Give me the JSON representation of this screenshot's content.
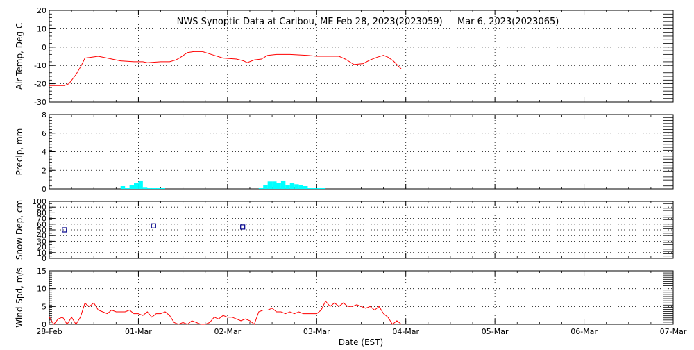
{
  "title": "NWS Synoptic Data at Caribou, ME   Feb 28, 2023(2023059) — Mar  6, 2023(2023065)",
  "x_axis": {
    "label": "Date (EST)",
    "range": [
      0,
      7
    ],
    "tick_labels": [
      "28-Feb",
      "01-Mar",
      "02-Mar",
      "03-Mar",
      "04-Mar",
      "05-Mar",
      "06-Mar",
      "07-Mar"
    ]
  },
  "colors": {
    "temp_line": "#ff0000",
    "precip_bar": "#00ffff",
    "snow_marker": "#00008b",
    "wind_line": "#ff0000",
    "axis": "#000000",
    "grid": "#000000"
  },
  "chart_data": [
    {
      "type": "line",
      "panel": "air-temp",
      "ylabel": "Air Temp, Deg C",
      "ylim": [
        -30,
        20
      ],
      "yticks": [
        -30,
        -20,
        -10,
        0,
        10,
        20
      ],
      "grid": true,
      "series": [
        {
          "x": [
            0.0,
            0.1,
            0.17,
            0.22,
            0.3,
            0.36,
            0.4,
            0.48,
            0.55,
            0.65,
            0.8,
            0.95,
            1.05,
            1.1,
            1.25,
            1.35,
            1.42,
            1.46,
            1.55,
            1.62,
            1.72,
            1.85,
            1.95,
            2.1,
            2.18,
            2.22,
            2.3,
            2.38,
            2.45,
            2.55,
            2.7,
            2.9,
            3.0,
            3.15,
            3.25,
            3.32,
            3.42,
            3.52,
            3.6,
            3.68,
            3.75,
            3.8,
            3.86,
            3.95
          ],
          "y": [
            -21,
            -21,
            -21,
            -20,
            -15,
            -10,
            -6,
            -5.5,
            -5,
            -6,
            -7.5,
            -8,
            -8,
            -8.5,
            -8,
            -8,
            -7,
            -6,
            -3,
            -2.5,
            -2.5,
            -4.5,
            -6,
            -6.5,
            -7.5,
            -8.5,
            -7,
            -6.5,
            -4.5,
            -4,
            -4,
            -4.5,
            -5,
            -5,
            -5,
            -6.5,
            -9.5,
            -9,
            -7,
            -5.5,
            -4.5,
            -5.5,
            -7.5,
            -12
          ]
        }
      ]
    },
    {
      "type": "bar",
      "panel": "precip",
      "ylabel": "Precip, mm",
      "ylim": [
        0,
        8
      ],
      "yticks": [
        0,
        2,
        4,
        6,
        8
      ],
      "grid": true,
      "series": [
        {
          "x": [
            0.75,
            0.8,
            0.85,
            0.9,
            0.95,
            1.0,
            1.05,
            1.1,
            1.15,
            1.2,
            1.25,
            1.3,
            2.35,
            2.4,
            2.45,
            2.5,
            2.55,
            2.6,
            2.65,
            2.7,
            2.75,
            2.8,
            2.85,
            2.9,
            2.95,
            3.0,
            3.05,
            3.1
          ],
          "values": [
            0,
            0.3,
            0.1,
            0.4,
            0.6,
            0.9,
            0.2,
            0.1,
            0.1,
            0.1,
            0.1,
            0.0,
            0.1,
            0.4,
            0.8,
            0.8,
            0.6,
            0.9,
            0.4,
            0.6,
            0.5,
            0.4,
            0.3,
            0.1,
            0.1,
            0.1,
            0.1,
            0.0
          ]
        }
      ]
    },
    {
      "type": "scatter",
      "panel": "snow-depth",
      "ylabel": "Snow Dep, cm",
      "ylim": [
        0,
        100
      ],
      "yticks": [
        0,
        10,
        20,
        30,
        40,
        50,
        60,
        70,
        80,
        90,
        100
      ],
      "grid": true,
      "series": [
        {
          "x": [
            0.17,
            1.17,
            2.17
          ],
          "y": [
            50,
            57,
            55
          ]
        }
      ]
    },
    {
      "type": "line",
      "panel": "wind-speed",
      "ylabel": "Wind Spd, m/s",
      "ylim": [
        0,
        15
      ],
      "yticks": [
        0,
        5,
        10,
        15
      ],
      "grid": true,
      "series": [
        {
          "x": [
            0.0,
            0.05,
            0.1,
            0.15,
            0.2,
            0.25,
            0.3,
            0.35,
            0.4,
            0.42,
            0.45,
            0.5,
            0.55,
            0.6,
            0.65,
            0.7,
            0.75,
            0.8,
            0.85,
            0.9,
            0.95,
            1.0,
            1.05,
            1.1,
            1.15,
            1.2,
            1.25,
            1.3,
            1.35,
            1.4,
            1.45,
            1.5,
            1.55,
            1.6,
            1.65,
            1.7,
            1.75,
            1.8,
            1.85,
            1.9,
            1.95,
            2.0,
            2.05,
            2.1,
            2.15,
            2.2,
            2.25,
            2.3,
            2.35,
            2.4,
            2.45,
            2.5,
            2.55,
            2.6,
            2.65,
            2.7,
            2.75,
            2.8,
            2.85,
            2.9,
            2.95,
            3.0,
            3.05,
            3.1,
            3.15,
            3.2,
            3.25,
            3.3,
            3.35,
            3.4,
            3.45,
            3.5,
            3.55,
            3.6,
            3.65,
            3.7,
            3.75,
            3.8,
            3.85,
            3.9,
            3.95
          ],
          "y": [
            2,
            0,
            1.5,
            2,
            0,
            2,
            0,
            2,
            6,
            5.5,
            5,
            6,
            4,
            3.5,
            3,
            4,
            3.5,
            3.5,
            3.5,
            4,
            3,
            3,
            2.5,
            3.5,
            2,
            3,
            3,
            3.5,
            2.5,
            0.5,
            0,
            0.5,
            0,
            1,
            0.5,
            0,
            0,
            0.5,
            2,
            1.5,
            2.5,
            2,
            2,
            1.5,
            1,
            1.5,
            1,
            0,
            3.5,
            4,
            4,
            4.5,
            3.5,
            3.5,
            3,
            3.5,
            3,
            3.5,
            3,
            3,
            3,
            3,
            4,
            6.5,
            5,
            6,
            5,
            6,
            5,
            5,
            5.5,
            5,
            4.5,
            5,
            4,
            5,
            3,
            2,
            0,
            1,
            0
          ]
        }
      ]
    }
  ]
}
